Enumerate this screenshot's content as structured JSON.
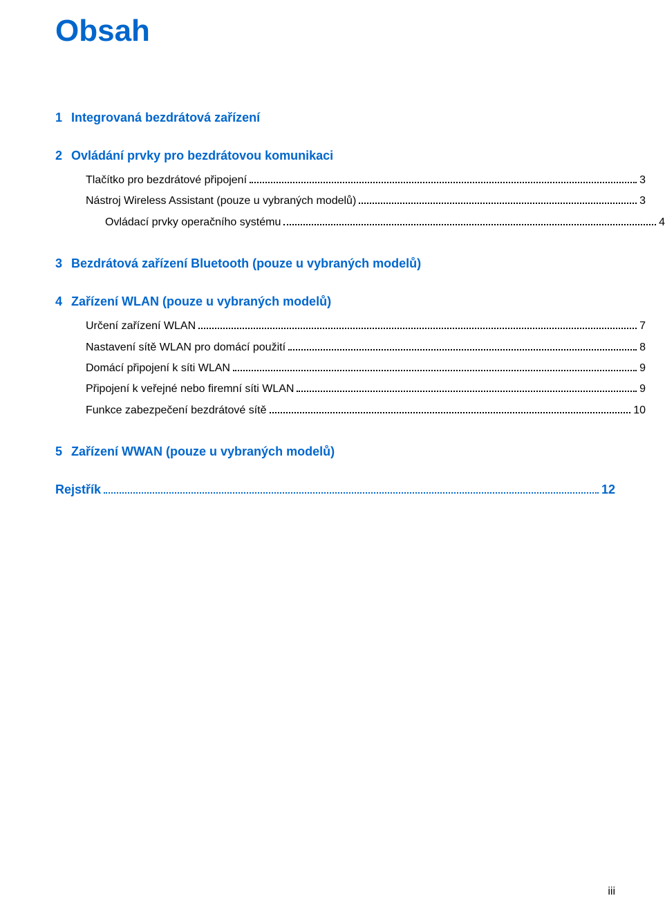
{
  "colors": {
    "heading": "#0066cc",
    "text": "#000000",
    "background": "#ffffff"
  },
  "typography": {
    "title_fontsize_pt": 33,
    "chapter_fontsize_pt": 14,
    "body_fontsize_pt": 12,
    "font_family": "Arial"
  },
  "title": "Obsah",
  "page_number_footer": "iii",
  "chapters": [
    {
      "number": "1",
      "title": "Integrovaná bezdrátová zařízení",
      "entries": []
    },
    {
      "number": "2",
      "title": "Ovládání prvky pro bezdrátovou komunikaci",
      "entries": [
        {
          "label": "Tlačítko pro bezdrátové připojení",
          "page": "3",
          "indent": 0
        },
        {
          "label": "Nástroj Wireless Assistant (pouze u vybraných modelů)",
          "page": "3",
          "indent": 0
        },
        {
          "label": "Ovládací prvky operačního systému",
          "page": "4",
          "indent": 0
        }
      ]
    },
    {
      "number": "3",
      "title": "Bezdrátová zařízení Bluetooth (pouze u vybraných modelů)",
      "entries": []
    },
    {
      "number": "4",
      "title": "Zařízení WLAN (pouze u vybraných modelů)",
      "entries": [
        {
          "label": "Určení zařízení WLAN",
          "page": "7",
          "indent": 0
        },
        {
          "label": "Nastavení sítě WLAN pro domácí použití",
          "page": "8",
          "indent": 0
        },
        {
          "label": "Domácí připojení k síti WLAN",
          "page": "9",
          "indent": 0
        },
        {
          "label": "Připojení k veřejné nebo firemní síti WLAN",
          "page": "9",
          "indent": 0
        },
        {
          "label": "Funkce zabezpečení bezdrátové sítě",
          "page": "10",
          "indent": 0
        }
      ]
    },
    {
      "number": "5",
      "title": "Zařízení WWAN (pouze u vybraných modelů)",
      "entries": []
    }
  ],
  "index": {
    "title": "Rejstřík",
    "page": "12"
  }
}
